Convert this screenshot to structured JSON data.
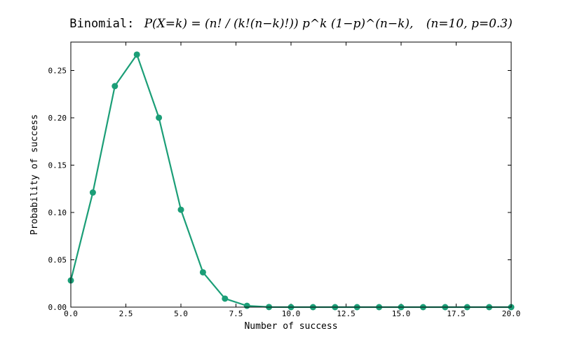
{
  "chart_data": {
    "type": "line",
    "title_prefix": "Binomial:",
    "title_formula": "P(X=k) = (n! / (k!(n−k)!)) p^k (1−p)^(n−k),",
    "title_params": "(n=10, p=0.3)",
    "xlabel": "Number of success",
    "ylabel": "Probability of success",
    "xlim": [
      0,
      20
    ],
    "ylim": [
      0,
      0.28
    ],
    "xticks": [
      "0.0",
      "2.5",
      "5.0",
      "7.5",
      "10.0",
      "12.5",
      "15.0",
      "17.5",
      "20.0"
    ],
    "yticks": [
      "0.00",
      "0.05",
      "0.10",
      "0.15",
      "0.20",
      "0.25"
    ],
    "grid": false,
    "series": [
      {
        "color": "#1b9e77",
        "x": [
          0,
          1,
          2,
          3,
          4,
          5,
          6,
          7,
          8,
          9,
          10,
          11,
          12,
          13,
          14,
          15,
          16,
          17,
          18,
          19,
          20
        ],
        "y": [
          0.0282,
          0.1211,
          0.2335,
          0.2668,
          0.2001,
          0.1029,
          0.0368,
          0.009,
          0.0014,
          0.0001,
          0.0,
          0,
          0,
          0,
          0,
          0,
          0,
          0,
          0,
          0,
          0
        ]
      }
    ]
  }
}
